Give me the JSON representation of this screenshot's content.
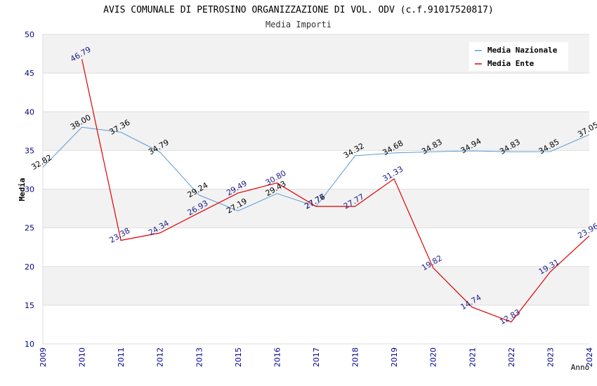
{
  "chart_data": {
    "type": "line",
    "title": "AVIS COMUNALE DI PETROSINO ORGANIZZAZIONE DI VOL. ODV (c.f.91017520817)",
    "subtitle": "Media Importi",
    "xlabel": "Anno",
    "ylabel": "Media",
    "ylim": [
      10,
      50
    ],
    "yticks": [
      "10",
      "15",
      "20",
      "25",
      "30",
      "35",
      "40",
      "45",
      "50"
    ],
    "categories": [
      "2009",
      "2010",
      "2011",
      "2012",
      "2013",
      "2015",
      "2016",
      "2017",
      "2018",
      "2019",
      "2020",
      "2021",
      "2022",
      "2023",
      "2024"
    ],
    "legend_position": "top-right",
    "grid": true,
    "series": [
      {
        "name": "Media Nazionale",
        "color": "#5b9bd5",
        "values": [
          32.82,
          38.0,
          37.36,
          34.79,
          29.24,
          27.19,
          29.43,
          27.76,
          34.32,
          34.68,
          34.83,
          34.94,
          34.83,
          34.85,
          37.05
        ],
        "labels": [
          "32.82",
          "38.00",
          "37.36",
          "34.79",
          "29.24",
          "27.19",
          "29.43",
          "27.76",
          "34.32",
          "34.68",
          "34.83",
          "34.94",
          "34.83",
          "34.85",
          "37.05"
        ]
      },
      {
        "name": "Media Ente",
        "color": "#e00000",
        "values": [
          null,
          46.79,
          23.38,
          24.34,
          26.93,
          29.49,
          30.8,
          27.77,
          27.77,
          31.33,
          19.82,
          14.74,
          12.83,
          19.31,
          23.96
        ],
        "labels": [
          "",
          "46.79",
          "23.38",
          "24.34",
          "26.93",
          "29.49",
          "30.80",
          "27.77",
          "27.77",
          "31.33",
          "19.82",
          "14.74",
          "12.83",
          "19.31",
          "23.96"
        ]
      }
    ]
  }
}
